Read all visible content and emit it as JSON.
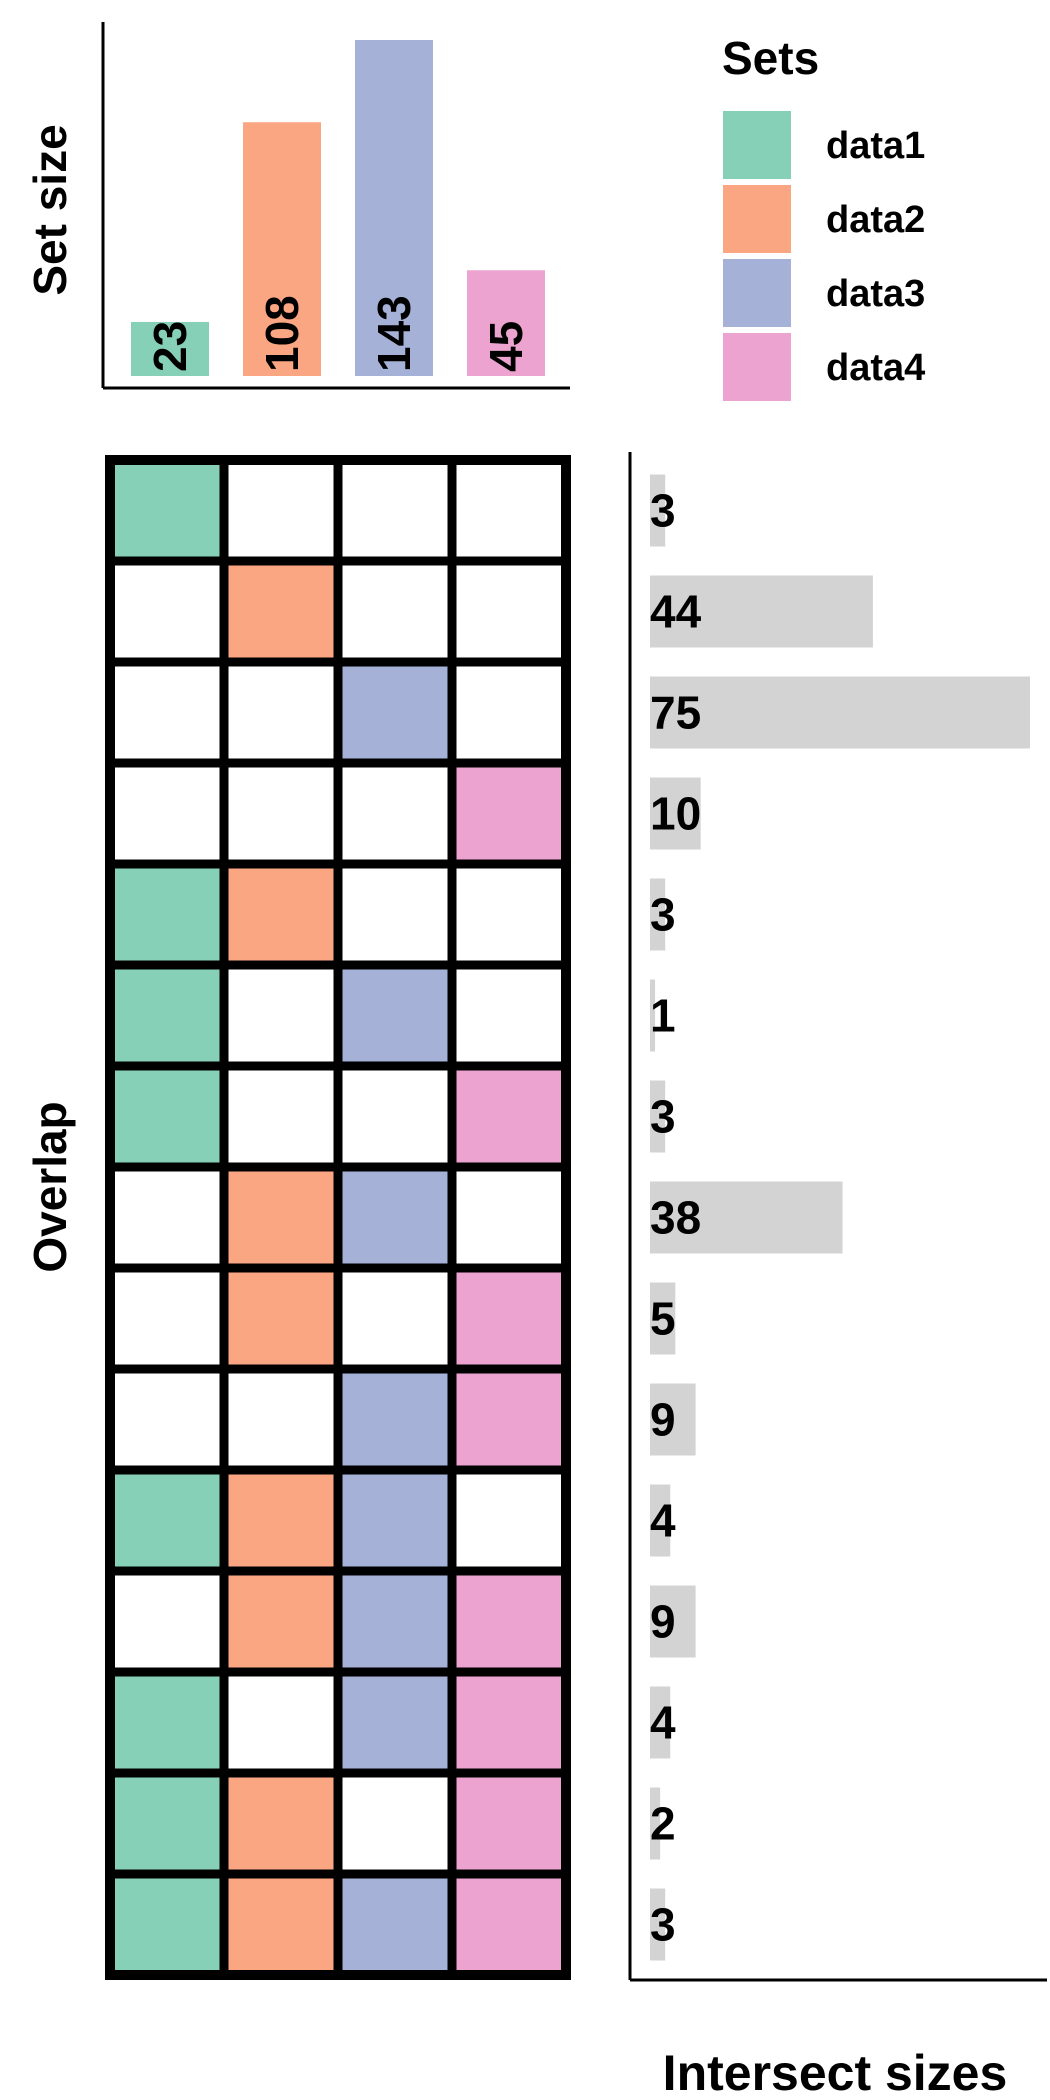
{
  "chart_data": {
    "type": "upset",
    "set_size_panel": {
      "ylabel": "Set size",
      "sets": [
        "data1",
        "data2",
        "data3",
        "data4"
      ],
      "values": [
        23,
        108,
        143,
        45
      ]
    },
    "legend": {
      "title": "Sets",
      "placement": "top-right",
      "entries": [
        "data1",
        "data2",
        "data3",
        "data4"
      ]
    },
    "overlap_panel": {
      "ylabel": "Overlap",
      "rows": [
        [
          1,
          0,
          0,
          0
        ],
        [
          0,
          1,
          0,
          0
        ],
        [
          0,
          0,
          1,
          0
        ],
        [
          0,
          0,
          0,
          1
        ],
        [
          1,
          1,
          0,
          0
        ],
        [
          1,
          0,
          1,
          0
        ],
        [
          1,
          0,
          0,
          1
        ],
        [
          0,
          1,
          1,
          0
        ],
        [
          0,
          1,
          0,
          1
        ],
        [
          0,
          0,
          1,
          1
        ],
        [
          1,
          1,
          1,
          0
        ],
        [
          0,
          1,
          1,
          1
        ],
        [
          1,
          0,
          1,
          1
        ],
        [
          1,
          1,
          0,
          1
        ],
        [
          1,
          1,
          1,
          1
        ]
      ]
    },
    "intersect_panel": {
      "xlabel": "Intersect sizes",
      "values": [
        3,
        44,
        75,
        10,
        3,
        1,
        3,
        38,
        5,
        9,
        4,
        9,
        4,
        2,
        3
      ],
      "xlim": [
        0,
        75
      ],
      "bar_color": "#d3d3d3"
    }
  },
  "colors": {
    "data1": "#86d0b7",
    "data2": "#fba682",
    "data3": "#a5b1d6",
    "data4": "#eca3cf"
  }
}
